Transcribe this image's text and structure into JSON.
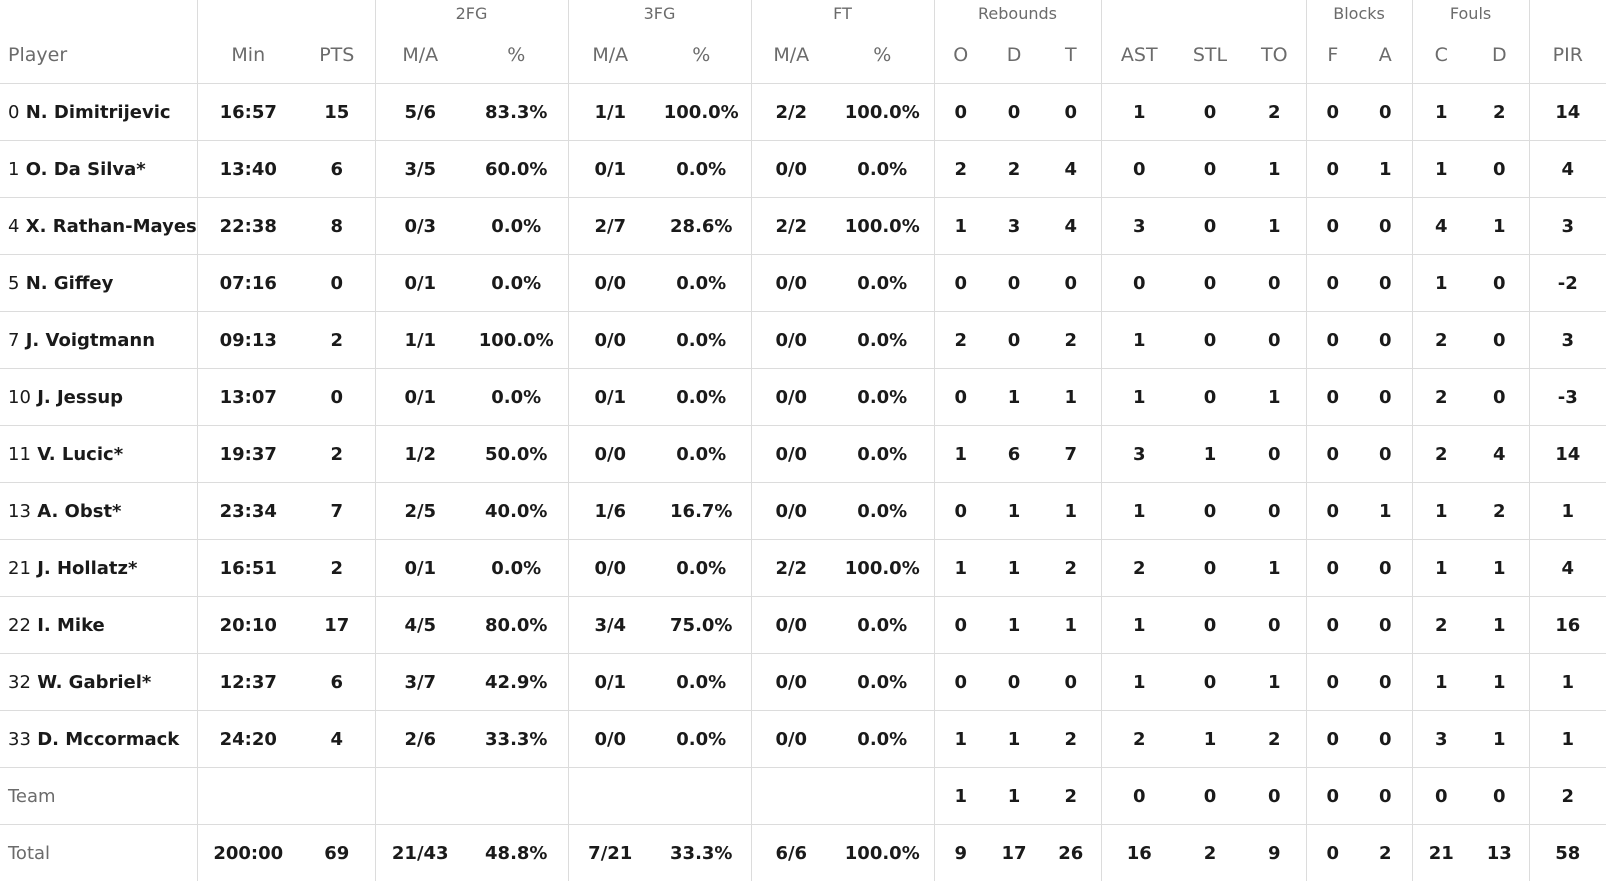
{
  "headers": {
    "groups": {
      "fg2": "2FG",
      "fg3": "3FG",
      "ft": "FT",
      "rebounds": "Rebounds",
      "blocks": "Blocks",
      "fouls": "Fouls"
    },
    "columns": [
      "Player",
      "Min",
      "PTS",
      "M/A",
      "%",
      "M/A",
      "%",
      "M/A",
      "%",
      "O",
      "D",
      "T",
      "AST",
      "STL",
      "TO",
      "F",
      "A",
      "C",
      "D",
      "PIR"
    ]
  },
  "players": [
    {
      "num": "0",
      "name": "N. Dimitrijevic",
      "stats": [
        "16:57",
        "15",
        "5/6",
        "83.3%",
        "1/1",
        "100.0%",
        "2/2",
        "100.0%",
        "0",
        "0",
        "0",
        "1",
        "0",
        "2",
        "0",
        "0",
        "1",
        "2",
        "14"
      ]
    },
    {
      "num": "1",
      "name": "O. Da Silva*",
      "stats": [
        "13:40",
        "6",
        "3/5",
        "60.0%",
        "0/1",
        "0.0%",
        "0/0",
        "0.0%",
        "2",
        "2",
        "4",
        "0",
        "0",
        "1",
        "0",
        "1",
        "1",
        "0",
        "4"
      ]
    },
    {
      "num": "4",
      "name": "X. Rathan-Mayes",
      "stats": [
        "22:38",
        "8",
        "0/3",
        "0.0%",
        "2/7",
        "28.6%",
        "2/2",
        "100.0%",
        "1",
        "3",
        "4",
        "3",
        "0",
        "1",
        "0",
        "0",
        "4",
        "1",
        "3"
      ]
    },
    {
      "num": "5",
      "name": "N. Giffey",
      "stats": [
        "07:16",
        "0",
        "0/1",
        "0.0%",
        "0/0",
        "0.0%",
        "0/0",
        "0.0%",
        "0",
        "0",
        "0",
        "0",
        "0",
        "0",
        "0",
        "0",
        "1",
        "0",
        "-2"
      ]
    },
    {
      "num": "7",
      "name": "J. Voigtmann",
      "stats": [
        "09:13",
        "2",
        "1/1",
        "100.0%",
        "0/0",
        "0.0%",
        "0/0",
        "0.0%",
        "2",
        "0",
        "2",
        "1",
        "0",
        "0",
        "0",
        "0",
        "2",
        "0",
        "3"
      ]
    },
    {
      "num": "10",
      "name": "J. Jessup",
      "stats": [
        "13:07",
        "0",
        "0/1",
        "0.0%",
        "0/1",
        "0.0%",
        "0/0",
        "0.0%",
        "0",
        "1",
        "1",
        "1",
        "0",
        "1",
        "0",
        "0",
        "2",
        "0",
        "-3"
      ]
    },
    {
      "num": "11",
      "name": "V. Lucic*",
      "stats": [
        "19:37",
        "2",
        "1/2",
        "50.0%",
        "0/0",
        "0.0%",
        "0/0",
        "0.0%",
        "1",
        "6",
        "7",
        "3",
        "1",
        "0",
        "0",
        "0",
        "2",
        "4",
        "14"
      ]
    },
    {
      "num": "13",
      "name": "A. Obst*",
      "stats": [
        "23:34",
        "7",
        "2/5",
        "40.0%",
        "1/6",
        "16.7%",
        "0/0",
        "0.0%",
        "0",
        "1",
        "1",
        "1",
        "0",
        "0",
        "0",
        "1",
        "1",
        "2",
        "1"
      ]
    },
    {
      "num": "21",
      "name": "J. Hollatz*",
      "stats": [
        "16:51",
        "2",
        "0/1",
        "0.0%",
        "0/0",
        "0.0%",
        "2/2",
        "100.0%",
        "1",
        "1",
        "2",
        "2",
        "0",
        "1",
        "0",
        "0",
        "1",
        "1",
        "4"
      ]
    },
    {
      "num": "22",
      "name": "I. Mike",
      "stats": [
        "20:10",
        "17",
        "4/5",
        "80.0%",
        "3/4",
        "75.0%",
        "0/0",
        "0.0%",
        "0",
        "1",
        "1",
        "1",
        "0",
        "0",
        "0",
        "0",
        "2",
        "1",
        "16"
      ]
    },
    {
      "num": "32",
      "name": "W. Gabriel*",
      "stats": [
        "12:37",
        "6",
        "3/7",
        "42.9%",
        "0/1",
        "0.0%",
        "0/0",
        "0.0%",
        "0",
        "0",
        "0",
        "1",
        "0",
        "1",
        "0",
        "0",
        "1",
        "1",
        "1"
      ]
    },
    {
      "num": "33",
      "name": "D. Mccormack",
      "stats": [
        "24:20",
        "4",
        "2/6",
        "33.3%",
        "0/0",
        "0.0%",
        "0/0",
        "0.0%",
        "1",
        "1",
        "2",
        "2",
        "1",
        "2",
        "0",
        "0",
        "3",
        "1",
        "1"
      ]
    }
  ],
  "team": {
    "label": "Team",
    "stats": [
      "",
      "",
      "",
      "",
      "",
      "",
      "",
      "",
      "1",
      "1",
      "2",
      "0",
      "0",
      "0",
      "0",
      "0",
      "0",
      "0",
      "2"
    ]
  },
  "total": {
    "label": "Total",
    "stats": [
      "200:00",
      "69",
      "21/43",
      "48.8%",
      "7/21",
      "33.3%",
      "6/6",
      "100.0%",
      "9",
      "17",
      "26",
      "16",
      "2",
      "9",
      "0",
      "2",
      "21",
      "13",
      "58"
    ]
  }
}
